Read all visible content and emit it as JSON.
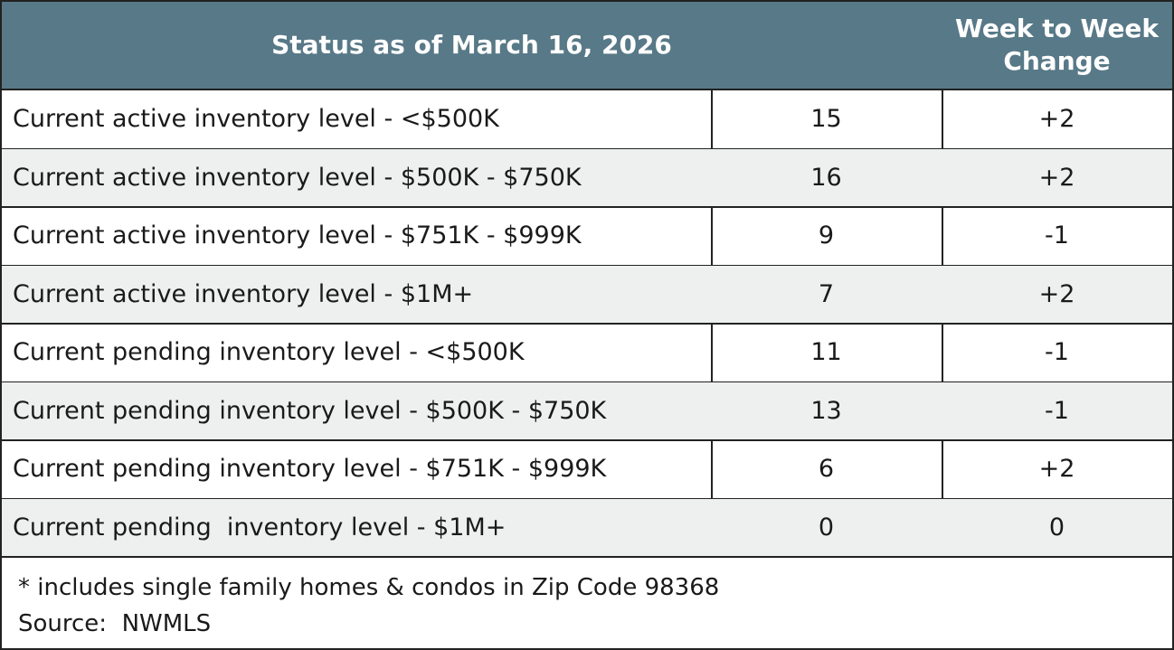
{
  "header": {
    "title": "Status as of March 16, 2026",
    "change_title": "Week to Week Change"
  },
  "table": {
    "rows": [
      [
        "Current active inventory level - <$500K",
        "15",
        "+2"
      ],
      [
        "Current active inventory level - $500K - $750K",
        "16",
        "+2"
      ],
      [
        "Current active inventory level - $751K - $999K",
        "9",
        "-1"
      ],
      [
        "Current active inventory level - $1M+",
        "7",
        "+2"
      ],
      [
        "Current pending inventory level - <$500K",
        "11",
        "-1"
      ],
      [
        "Current pending inventory level - $500K - $750K",
        "13",
        "-1"
      ],
      [
        "Current pending inventory level - $751K - $999K",
        "6",
        "+2"
      ],
      [
        "Current pending  inventory level - $1M+",
        "0",
        "0"
      ]
    ]
  },
  "footer": {
    "note": "* includes single family homes & condos in Zip Code 98368",
    "source": "Source:  NWMLS"
  }
}
